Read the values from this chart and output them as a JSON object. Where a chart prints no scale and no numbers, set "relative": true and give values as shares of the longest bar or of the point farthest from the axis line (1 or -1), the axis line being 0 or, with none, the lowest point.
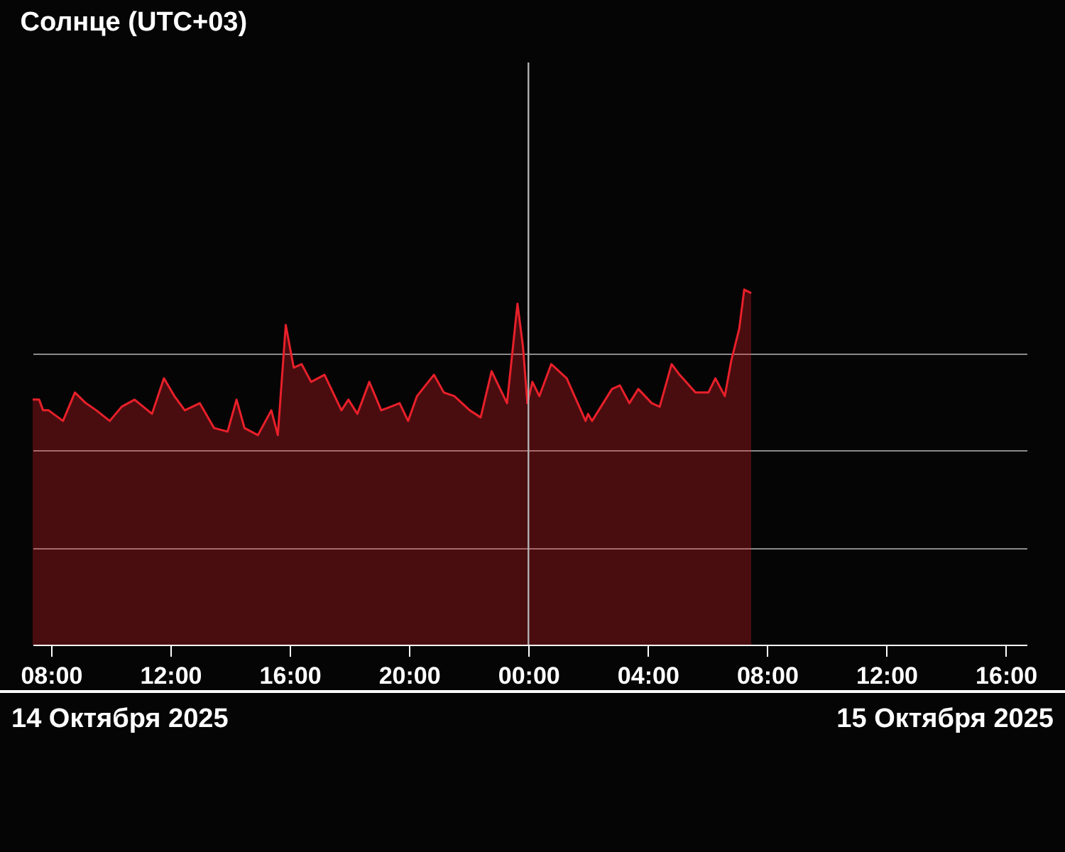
{
  "chart_data": {
    "type": "area",
    "title": "Солнце (UTC+03)",
    "relative": true,
    "grid": "y",
    "xlim": [
      "2025-10-14T07:23",
      "2025-10-15T16:42"
    ],
    "xticks": [
      {
        "value": "2025-10-14T08:00",
        "label": "08:00"
      },
      {
        "value": "2025-10-14T12:00",
        "label": "12:00"
      },
      {
        "value": "2025-10-14T16:00",
        "label": "16:00"
      },
      {
        "value": "2025-10-14T20:00",
        "label": "20:00"
      },
      {
        "value": "2025-10-15T00:00",
        "label": "00:00"
      },
      {
        "value": "2025-10-15T04:00",
        "label": "04:00"
      },
      {
        "value": "2025-10-15T08:00",
        "label": "08:00"
      },
      {
        "value": "2025-10-15T12:00",
        "label": "12:00"
      },
      {
        "value": "2025-10-15T16:00",
        "label": "16:00"
      }
    ],
    "ref_lines": [
      {
        "axis": "x",
        "value": "2025-10-15T00:00",
        "color": "#b0b0b0"
      }
    ],
    "annotations": [
      "14 Октября 2025",
      "15 Октября 2025"
    ],
    "series": [
      {
        "color": "#e8202a",
        "x": [
          "2025-10-14T07:23",
          "2025-10-14T07:36",
          "2025-10-14T07:44",
          "2025-10-14T07:55",
          "2025-10-14T08:24",
          "2025-10-14T08:48",
          "2025-10-14T09:10",
          "2025-10-14T09:31",
          "2025-10-14T09:58",
          "2025-10-14T10:22",
          "2025-10-14T10:48",
          "2025-10-14T11:23",
          "2025-10-14T11:47",
          "2025-10-14T12:08",
          "2025-10-14T12:29",
          "2025-10-14T12:59",
          "2025-10-14T13:28",
          "2025-10-14T13:55",
          "2025-10-14T14:13",
          "2025-10-14T14:29",
          "2025-10-14T14:56",
          "2025-10-14T15:23",
          "2025-10-14T15:36",
          "2025-10-14T15:52",
          "2025-10-14T16:08",
          "2025-10-14T16:24",
          "2025-10-14T16:43",
          "2025-10-14T17:10",
          "2025-10-14T17:44",
          "2025-10-14T17:58",
          "2025-10-14T18:16",
          "2025-10-14T18:40",
          "2025-10-14T19:04",
          "2025-10-14T19:23",
          "2025-10-14T19:41",
          "2025-10-14T19:58",
          "2025-10-14T20:16",
          "2025-10-14T20:50",
          "2025-10-14T21:10",
          "2025-10-14T21:31",
          "2025-10-14T22:02",
          "2025-10-14T22:24",
          "2025-10-14T22:46",
          "2025-10-14T23:17",
          "2025-10-14T23:38",
          "2025-10-14T23:49",
          "2025-10-14T23:58",
          "2025-10-15T00:08",
          "2025-10-15T00:22",
          "2025-10-15T00:46",
          "2025-10-15T01:17",
          "2025-10-15T01:55",
          "2025-10-15T02:00",
          "2025-10-15T02:08",
          "2025-10-15T02:48",
          "2025-10-15T03:04",
          "2025-10-15T03:23",
          "2025-10-15T03:41",
          "2025-10-15T04:08",
          "2025-10-15T04:24",
          "2025-10-15T04:48",
          "2025-10-15T05:04",
          "2025-10-15T05:36",
          "2025-10-15T06:02",
          "2025-10-15T06:16",
          "2025-10-15T06:35",
          "2025-10-15T06:48",
          "2025-10-15T07:04",
          "2025-10-15T07:14",
          "2025-10-15T07:28"
        ],
        "values": [
          0.69,
          0.69,
          0.66,
          0.66,
          0.63,
          0.71,
          0.68,
          0.66,
          0.63,
          0.67,
          0.69,
          0.65,
          0.75,
          0.7,
          0.66,
          0.68,
          0.61,
          0.6,
          0.69,
          0.61,
          0.59,
          0.66,
          0.59,
          0.9,
          0.78,
          0.79,
          0.74,
          0.76,
          0.66,
          0.69,
          0.65,
          0.74,
          0.66,
          0.67,
          0.68,
          0.63,
          0.7,
          0.76,
          0.71,
          0.7,
          0.66,
          0.64,
          0.77,
          0.68,
          0.96,
          0.84,
          0.68,
          0.74,
          0.7,
          0.79,
          0.75,
          0.63,
          0.65,
          0.63,
          0.72,
          0.73,
          0.68,
          0.72,
          0.68,
          0.67,
          0.79,
          0.76,
          0.71,
          0.71,
          0.75,
          0.7,
          0.8,
          0.89,
          1.0,
          0.99
        ]
      }
    ]
  }
}
